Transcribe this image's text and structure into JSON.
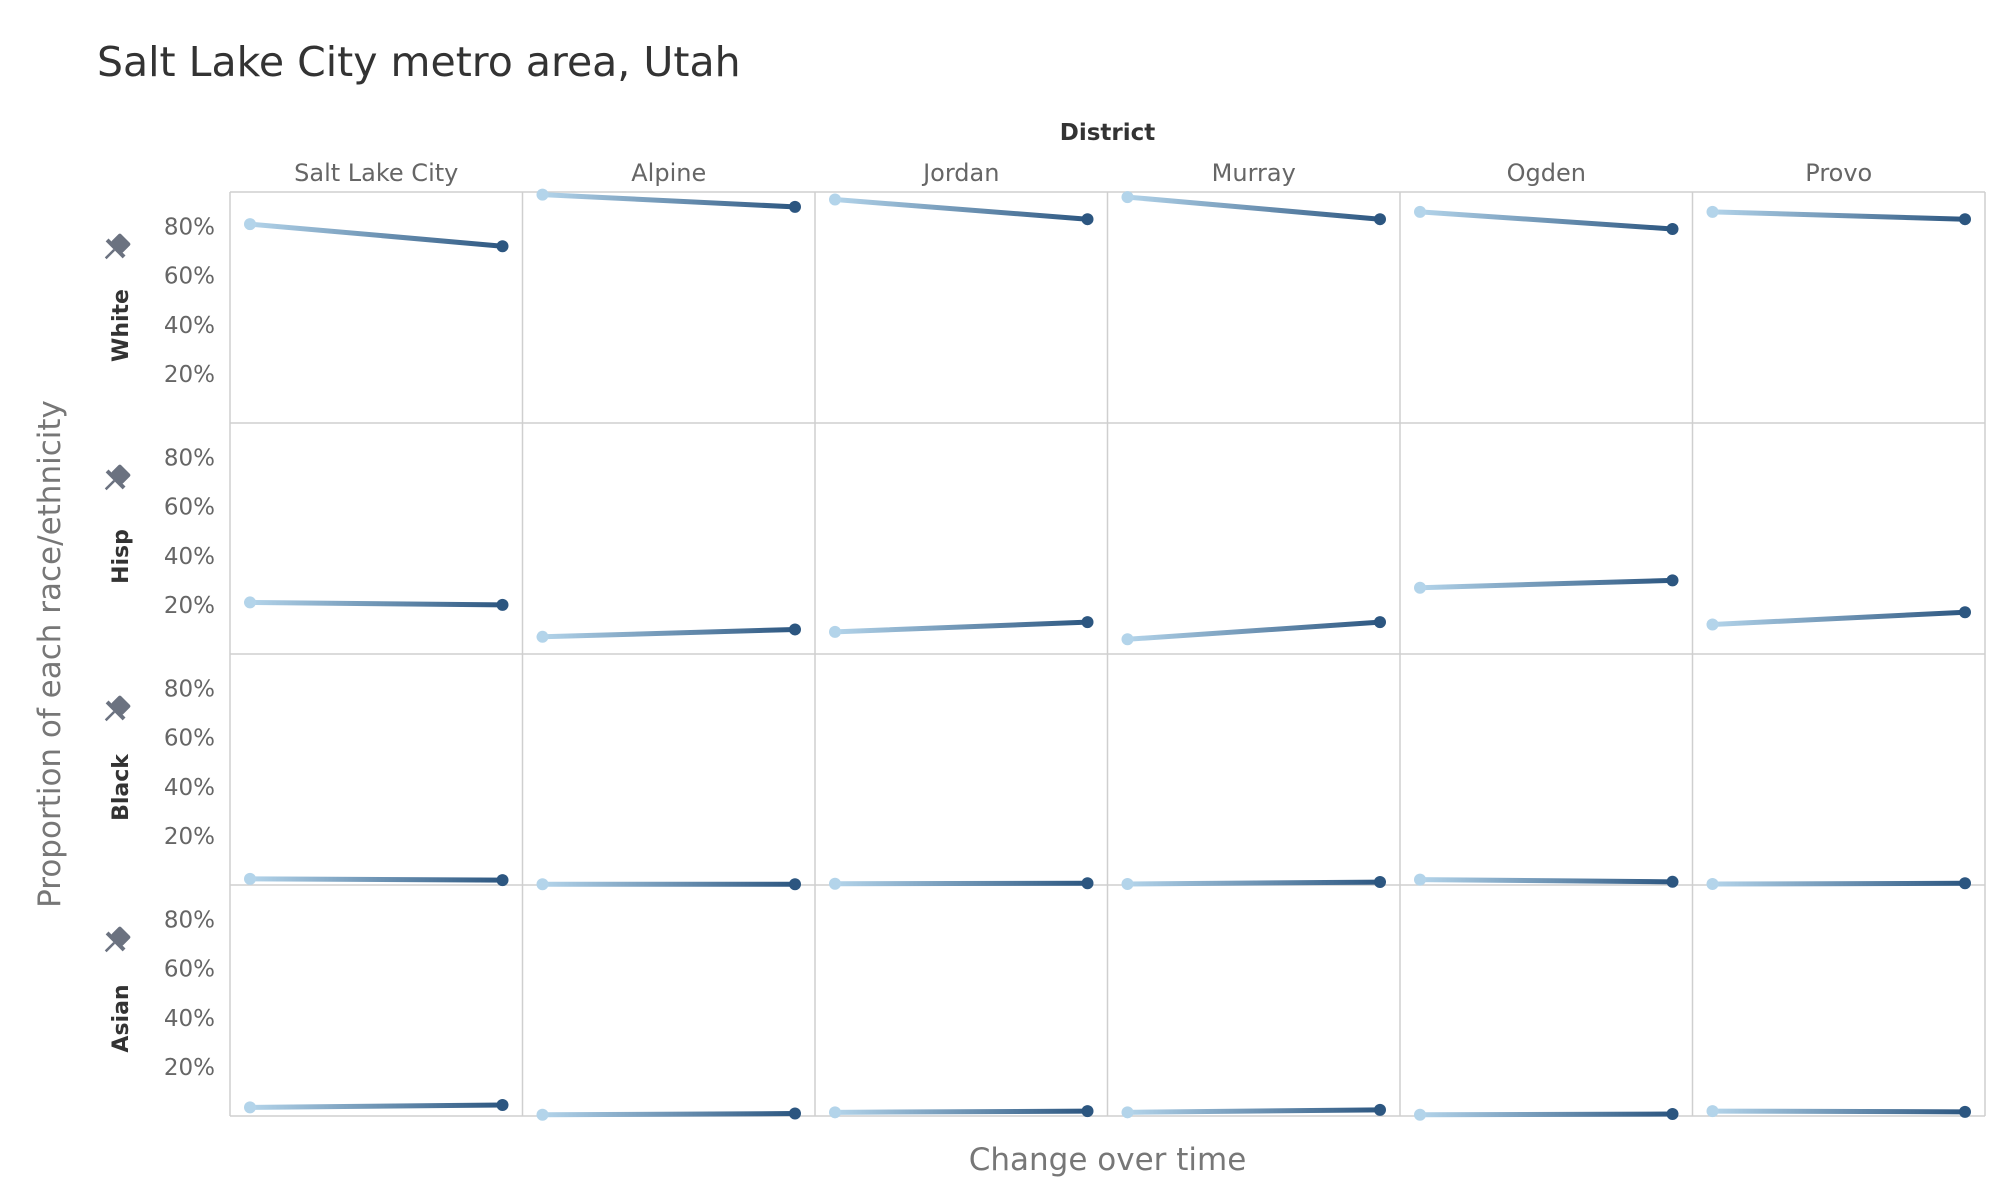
{
  "title": "Salt Lake City metro area, Utah",
  "chart_data": {
    "type": "line",
    "layout": "small-multiples",
    "column_group_title": "District",
    "columns": [
      "Salt Lake City",
      "Alpine",
      "Jordan",
      "Murray",
      "Ogden",
      "Provo"
    ],
    "rows": [
      "White",
      "Hisp",
      "Black",
      "Asian"
    ],
    "xlabel": "Change over time",
    "ylabel": "Proportion of each race/ethnicity",
    "y_ticks": [
      "80%",
      "60%",
      "40%",
      "20%"
    ],
    "ylim": [
      0,
      0.9
    ],
    "series_start_color": "#b3d4ea",
    "series_end_color": "#2c5680",
    "pin_icon": "pin-icon",
    "values": {
      "White": [
        [
          0.81,
          0.72
        ],
        [
          0.93,
          0.88
        ],
        [
          0.91,
          0.83
        ],
        [
          0.92,
          0.83
        ],
        [
          0.86,
          0.79
        ],
        [
          0.86,
          0.83
        ]
      ],
      "Hisp": [
        [
          0.21,
          0.2
        ],
        [
          0.07,
          0.1
        ],
        [
          0.09,
          0.13
        ],
        [
          0.06,
          0.13
        ],
        [
          0.27,
          0.3
        ],
        [
          0.12,
          0.17
        ]
      ],
      "Black": [
        [
          0.025,
          0.02
        ],
        [
          0.003,
          0.003
        ],
        [
          0.005,
          0.007
        ],
        [
          0.004,
          0.012
        ],
        [
          0.022,
          0.013
        ],
        [
          0.004,
          0.007
        ]
      ],
      "Asian": [
        [
          0.035,
          0.045
        ],
        [
          0.005,
          0.01
        ],
        [
          0.015,
          0.02
        ],
        [
          0.015,
          0.025
        ],
        [
          0.005,
          0.008
        ],
        [
          0.02,
          0.017
        ]
      ]
    }
  }
}
